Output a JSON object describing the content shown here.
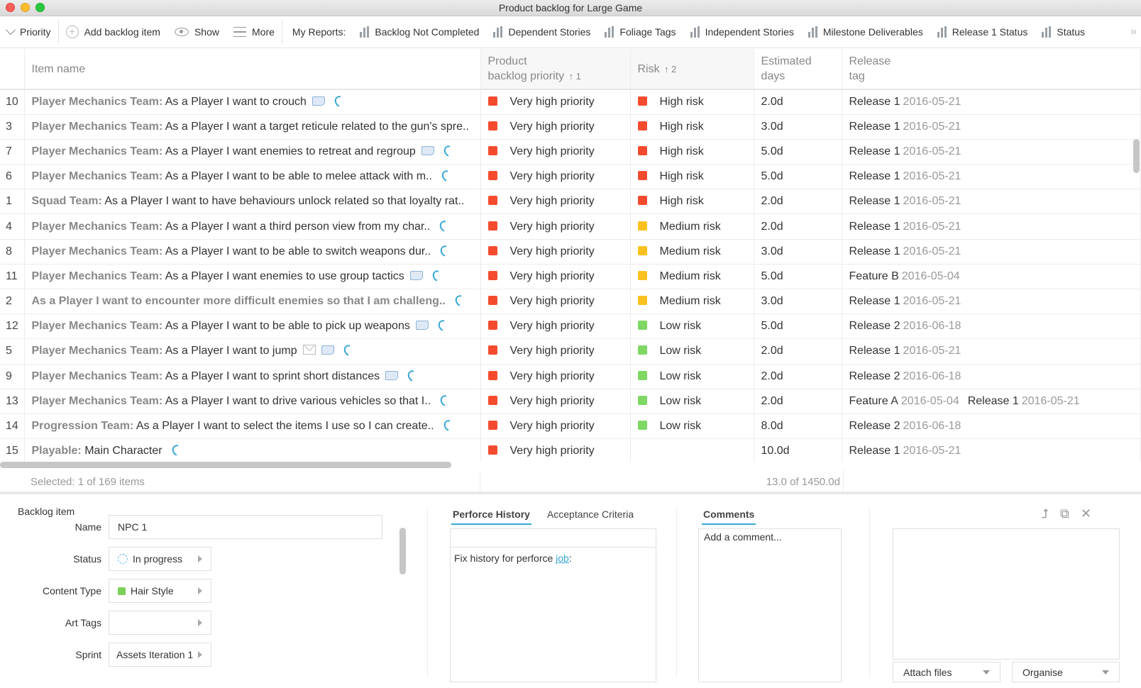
{
  "window": {
    "title": "Product backlog for Large Game"
  },
  "toolbar": {
    "priority_label": "Priority",
    "add_label": "Add backlog item",
    "show_label": "Show",
    "more_label": "More",
    "reports_label": "My Reports:",
    "reports": [
      {
        "label": "Backlog Not Completed"
      },
      {
        "label": "Dependent Stories"
      },
      {
        "label": "Foliage Tags"
      },
      {
        "label": "Independent Stories"
      },
      {
        "label": "Milestone Deliverables"
      },
      {
        "label": "Release 1 Status"
      },
      {
        "label": "Status"
      }
    ],
    "overflow_glyph": "»"
  },
  "table": {
    "columns": {
      "item_name": "Item name",
      "priority_line1": "Product",
      "priority_line2": "backlog priority",
      "priority_sort": "↑ 1",
      "risk": "Risk",
      "risk_sort": "↑ 2",
      "days_line1": "Estimated",
      "days_line2": "days",
      "tag_line1": "Release",
      "tag_line2": "tag"
    },
    "colors": {
      "very_high": "#f44b2f",
      "high_risk": "#f44b2f",
      "medium_risk": "#fcc11f",
      "low_risk": "#7ed863"
    },
    "rows": [
      {
        "num": "10",
        "team": "Player Mechanics Team:",
        "text": " As a Player I want to crouch",
        "icons": [
          "note",
          "refresh"
        ],
        "priority": "Very high priority",
        "risk": "High risk",
        "risk_level": "high",
        "days": "2.0d",
        "tags": [
          {
            "name": "Release 1",
            "date": "2016-05-21"
          }
        ]
      },
      {
        "num": "3",
        "team": "Player Mechanics Team:",
        "text": " As a Player I want a target reticule related to the gun's spre..",
        "icons": [],
        "priority": "Very high priority",
        "risk": "High risk",
        "risk_level": "high",
        "days": "3.0d",
        "tags": [
          {
            "name": "Release 1",
            "date": "2016-05-21"
          }
        ]
      },
      {
        "num": "7",
        "team": "Player Mechanics Team:",
        "text": " As a Player I want enemies to retreat and regroup",
        "icons": [
          "note",
          "refresh"
        ],
        "priority": "Very high priority",
        "risk": "High risk",
        "risk_level": "high",
        "days": "5.0d",
        "tags": [
          {
            "name": "Release 1",
            "date": "2016-05-21"
          }
        ]
      },
      {
        "num": "6",
        "team": "Player Mechanics Team:",
        "text": " As a Player I want to be able to melee attack with m..",
        "icons": [
          "refresh"
        ],
        "priority": "Very high priority",
        "risk": "High risk",
        "risk_level": "high",
        "days": "5.0d",
        "tags": [
          {
            "name": "Release 1",
            "date": "2016-05-21"
          }
        ]
      },
      {
        "num": "1",
        "team": "Squad Team:",
        "text": " As a Player I want to have behaviours unlock related so that loyalty rat..",
        "icons": [],
        "priority": "Very high priority",
        "risk": "High risk",
        "risk_level": "high",
        "days": "2.0d",
        "tags": [
          {
            "name": "Release 1",
            "date": "2016-05-21"
          }
        ]
      },
      {
        "num": "4",
        "team": "Player Mechanics Team:",
        "text": " As a Player I want a third person view from my char..",
        "icons": [
          "refresh"
        ],
        "priority": "Very high priority",
        "risk": "Medium risk",
        "risk_level": "medium",
        "days": "2.0d",
        "tags": [
          {
            "name": "Release 1",
            "date": "2016-05-21"
          }
        ]
      },
      {
        "num": "8",
        "team": "Player Mechanics Team:",
        "text": " As a Player I want to be able to switch weapons dur..",
        "icons": [
          "refresh"
        ],
        "priority": "Very high priority",
        "risk": "Medium risk",
        "risk_level": "medium",
        "days": "3.0d",
        "tags": [
          {
            "name": "Release 1",
            "date": "2016-05-21"
          }
        ]
      },
      {
        "num": "11",
        "team": "Player Mechanics Team:",
        "text": " As a Player I want enemies to use group tactics",
        "icons": [
          "note",
          "refresh"
        ],
        "priority": "Very high priority",
        "risk": "Medium risk",
        "risk_level": "medium",
        "days": "5.0d",
        "tags": [
          {
            "name": "Feature B",
            "date": "2016-05-04"
          }
        ]
      },
      {
        "num": "2",
        "team": "",
        "text": "As a Player I want to encounter more difficult enemies so that I am challeng..",
        "text_style": "team",
        "icons": [
          "refresh"
        ],
        "priority": "Very high priority",
        "risk": "Medium risk",
        "risk_level": "medium",
        "days": "3.0d",
        "tags": [
          {
            "name": "Release 1",
            "date": "2016-05-21"
          }
        ]
      },
      {
        "num": "12",
        "team": "Player Mechanics Team:",
        "text": " As a Player I want to be able to pick up weapons",
        "icons": [
          "note",
          "refresh"
        ],
        "priority": "Very high priority",
        "risk": "Low risk",
        "risk_level": "low",
        "days": "5.0d",
        "tags": [
          {
            "name": "Release 2",
            "date": "2016-06-18"
          }
        ]
      },
      {
        "num": "5",
        "team": "Player Mechanics Team:",
        "text": " As a Player I want to jump",
        "icons": [
          "mail",
          "note",
          "refresh"
        ],
        "priority": "Very high priority",
        "risk": "Low risk",
        "risk_level": "low",
        "days": "2.0d",
        "tags": [
          {
            "name": "Release 1",
            "date": "2016-05-21"
          }
        ]
      },
      {
        "num": "9",
        "team": "Player Mechanics Team:",
        "text": " As a Player I want to sprint short distances",
        "icons": [
          "note",
          "refresh"
        ],
        "priority": "Very high priority",
        "risk": "Low risk",
        "risk_level": "low",
        "days": "2.0d",
        "tags": [
          {
            "name": "Release 2",
            "date": "2016-06-18"
          }
        ]
      },
      {
        "num": "13",
        "team": "Player Mechanics Team:",
        "text": " As a Player I want to drive various vehicles so that I..",
        "icons": [
          "refresh"
        ],
        "priority": "Very high priority",
        "risk": "Low risk",
        "risk_level": "low",
        "days": "2.0d",
        "tags": [
          {
            "name": "Feature A",
            "date": "2016-05-04"
          },
          {
            "name": "Release 1",
            "date": "2016-05-21"
          }
        ]
      },
      {
        "num": "14",
        "team": "Progression Team:",
        "text": " As a Player I want to select the items I use so I can create..",
        "icons": [
          "refresh"
        ],
        "priority": "Very high priority",
        "risk": "Low risk",
        "risk_level": "low",
        "days": "8.0d",
        "tags": [
          {
            "name": "Release 2",
            "date": "2016-06-18"
          }
        ]
      },
      {
        "num": "15",
        "team": "Playable:",
        "text": " Main Character",
        "icons": [
          "refresh"
        ],
        "priority": "Very high priority",
        "risk": "",
        "risk_level": "none",
        "days": "10.0d",
        "tags": [
          {
            "name": "Release 1",
            "date": "2016-05-21"
          }
        ]
      }
    ]
  },
  "status": {
    "selected": "Selected: 1 of 169 items",
    "days_total": "13.0 of 1450.0d"
  },
  "detail": {
    "title": "Backlog item",
    "name_label": "Name",
    "name_value": "NPC 1",
    "status_label": "Status",
    "status_value": "In progress",
    "content_type_label": "Content Type",
    "content_type_value": "Hair Style",
    "art_tags_label": "Art Tags",
    "art_tags_value": "",
    "sprint_label": "Sprint",
    "sprint_value": "Assets Iteration 1",
    "tabs": [
      {
        "label": "Perforce History",
        "active": true
      },
      {
        "label": "Acceptance Criteria",
        "active": false
      }
    ],
    "perforce_text": "Fix history for perforce ",
    "perforce_link": "job",
    "perforce_suffix": ":",
    "comments_tab": "Comments",
    "comment_placeholder": "Add a comment...",
    "attach_label": "Attach files",
    "organise_label": "Organise"
  }
}
